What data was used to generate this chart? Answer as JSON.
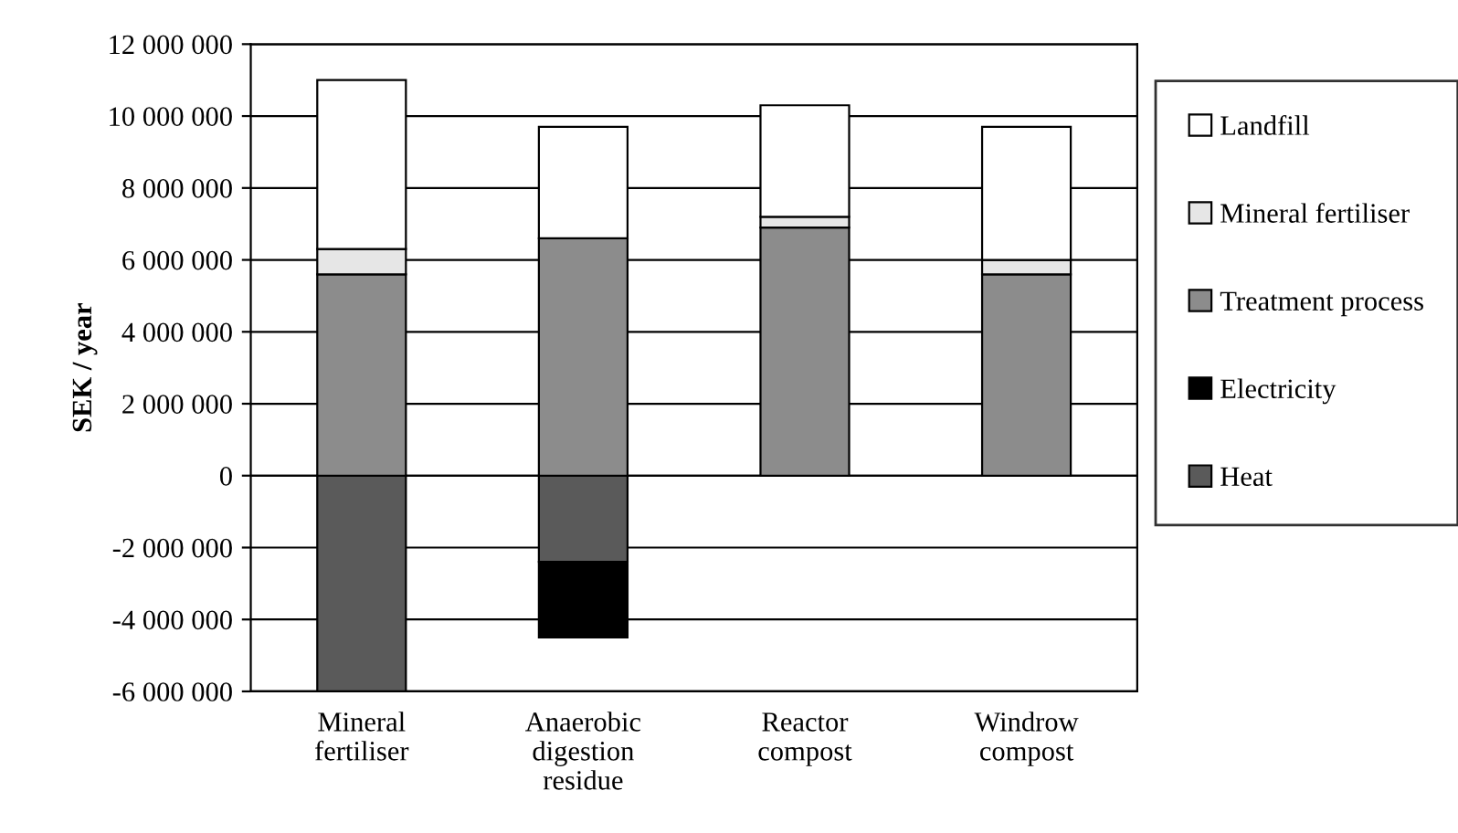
{
  "chart_data": {
    "type": "bar",
    "stacked": true,
    "ylabel": "SEK / year",
    "categories": [
      "Mineral fertiliser",
      "Anaerobic digestion residue",
      "Reactor compost",
      "Windrow compost"
    ],
    "series": [
      {
        "name": "Heat",
        "color": "#5a5a5a",
        "values": [
          -6000000,
          -2400000,
          null,
          null
        ]
      },
      {
        "name": "Electricity",
        "color": "#000000",
        "values": [
          null,
          -2100000,
          null,
          null
        ]
      },
      {
        "name": "Treatment process",
        "color": "#8c8c8c",
        "values": [
          5600000,
          6600000,
          6900000,
          5600000
        ]
      },
      {
        "name": "Mineral fertiliser",
        "color": "#e6e6e6",
        "values": [
          700000,
          null,
          300000,
          400000
        ]
      },
      {
        "name": "Landfill",
        "color": "#ffffff",
        "values": [
          4700000,
          3100000,
          3100000,
          3700000
        ]
      }
    ],
    "ylim": [
      -6000000,
      12000000
    ],
    "yticks": [
      {
        "value": -6000000,
        "label": "-6 000 000"
      },
      {
        "value": -4000000,
        "label": "-4 000 000"
      },
      {
        "value": -2000000,
        "label": "-2 000 000"
      },
      0,
      {
        "value": 2000000,
        "label": "2 000 000"
      },
      {
        "value": 4000000,
        "label": "4 000 000"
      },
      {
        "value": 6000000,
        "label": "6 000 000"
      },
      {
        "value": 8000000,
        "label": "8 000 000"
      },
      {
        "value": 10000000,
        "label": "10 000 000"
      },
      {
        "value": 12000000,
        "label": "12 000 000"
      }
    ],
    "grid": "y",
    "legend": "right"
  }
}
